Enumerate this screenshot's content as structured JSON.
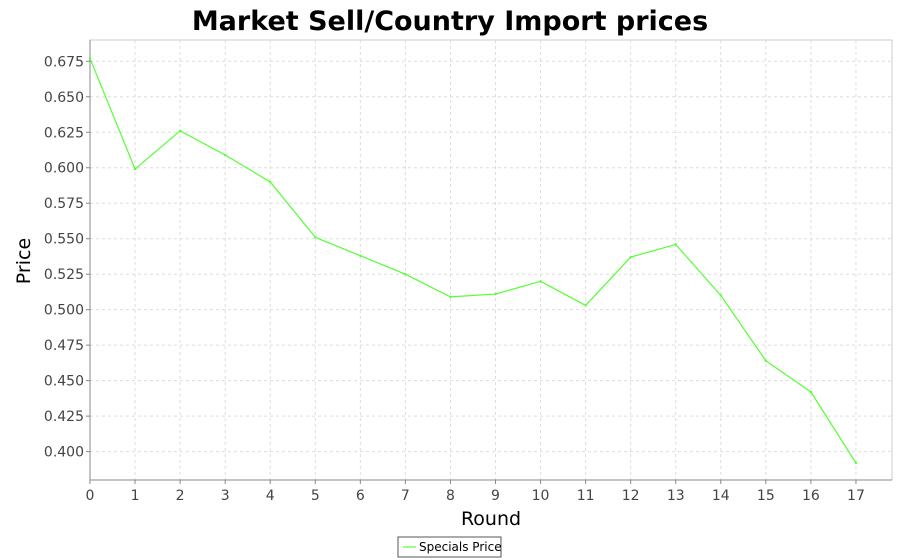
{
  "chart_data": {
    "type": "line",
    "title": "Market Sell/Country Import prices",
    "xlabel": "Round",
    "ylabel": "Price",
    "xlim": [
      0,
      17.8
    ],
    "ylim": [
      0.38,
      0.69
    ],
    "x_ticks": [
      0,
      1,
      2,
      3,
      4,
      5,
      6,
      7,
      8,
      9,
      10,
      11,
      12,
      13,
      14,
      15,
      16,
      17
    ],
    "y_ticks": [
      0.4,
      0.425,
      0.45,
      0.475,
      0.5,
      0.525,
      0.55,
      0.575,
      0.6,
      0.625,
      0.65,
      0.675
    ],
    "y_tick_labels": [
      "0.400",
      "0.425",
      "0.450",
      "0.475",
      "0.500",
      "0.525",
      "0.550",
      "0.575",
      "0.600",
      "0.625",
      "0.650",
      "0.675"
    ],
    "grid": true,
    "legend_position": "bottom-center",
    "series": [
      {
        "name": "Specials Price",
        "color": "#55ff33",
        "x": [
          0,
          1,
          2,
          3,
          4,
          5,
          6,
          7,
          8,
          9,
          10,
          11,
          12,
          13,
          14,
          15,
          16,
          17
        ],
        "y": [
          0.677,
          0.599,
          0.626,
          0.609,
          0.59,
          0.551,
          0.538,
          0.525,
          0.509,
          0.511,
          0.52,
          0.503,
          0.537,
          0.546,
          0.51,
          0.464,
          0.442,
          0.392
        ]
      }
    ]
  }
}
